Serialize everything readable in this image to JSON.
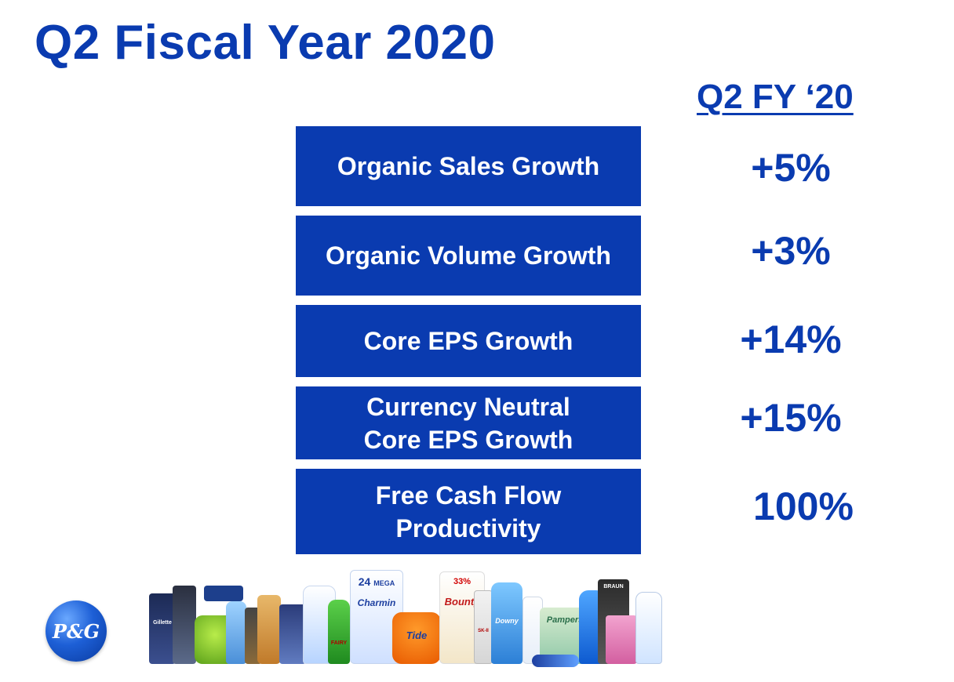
{
  "title": "Q2 Fiscal Year 2020",
  "column_header": "Q2 FY ‘20",
  "metrics": [
    {
      "label": "Organic Sales Growth",
      "value": "+5%"
    },
    {
      "label": "Organic Volume Growth",
      "value": "+3%"
    },
    {
      "label": "Core EPS Growth",
      "value": "+14%"
    },
    {
      "label": "Currency Neutral\nCore EPS Growth",
      "value": "+15%"
    },
    {
      "label": "Free Cash Flow\nProductivity",
      "value": "100%"
    }
  ],
  "logo": {
    "text": "P&G"
  },
  "products": {
    "charmin_count": "24",
    "charmin_size": "MEGA",
    "charmin_brand": "Charmin",
    "bounty_pct": "33%",
    "bounty_brand": "Bounty",
    "tide_brand": "Tide",
    "gillette_brand": "Gillette",
    "downy_brand": "Downy",
    "pampers_brand": "Pampers",
    "fairy_brand": "FAIRY",
    "braun_brand": "BRAUN",
    "skii_brand": "SK-II"
  },
  "colors": {
    "brand_blue": "#0a3bb0",
    "box_text": "#ffffff",
    "background": "#ffffff"
  }
}
